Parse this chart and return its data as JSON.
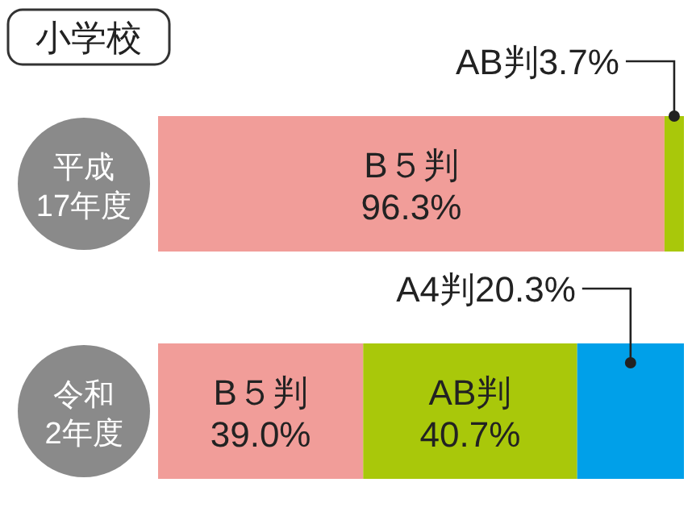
{
  "chart_data": {
    "type": "bar",
    "orientation": "horizontal",
    "stacked": true,
    "title": "小学校",
    "categories": [
      "平成\n17年度",
      "令和\n2年度"
    ],
    "xlim": [
      0,
      100
    ],
    "tick_labels": "y",
    "series": [
      {
        "name": "B５判",
        "color": "#f19d99",
        "values": [
          96.3,
          39.0
        ],
        "value_labels": [
          "96.3%",
          "39.0%"
        ]
      },
      {
        "name": "AB判",
        "color": "#a9c80a",
        "values": [
          3.7,
          40.7
        ],
        "value_labels": [
          "3.7%",
          "40.7%"
        ]
      },
      {
        "name": "A4判",
        "color": "#00a0e9",
        "values": [
          null,
          20.3
        ],
        "value_labels": [
          null,
          "20.3%"
        ]
      }
    ]
  }
}
